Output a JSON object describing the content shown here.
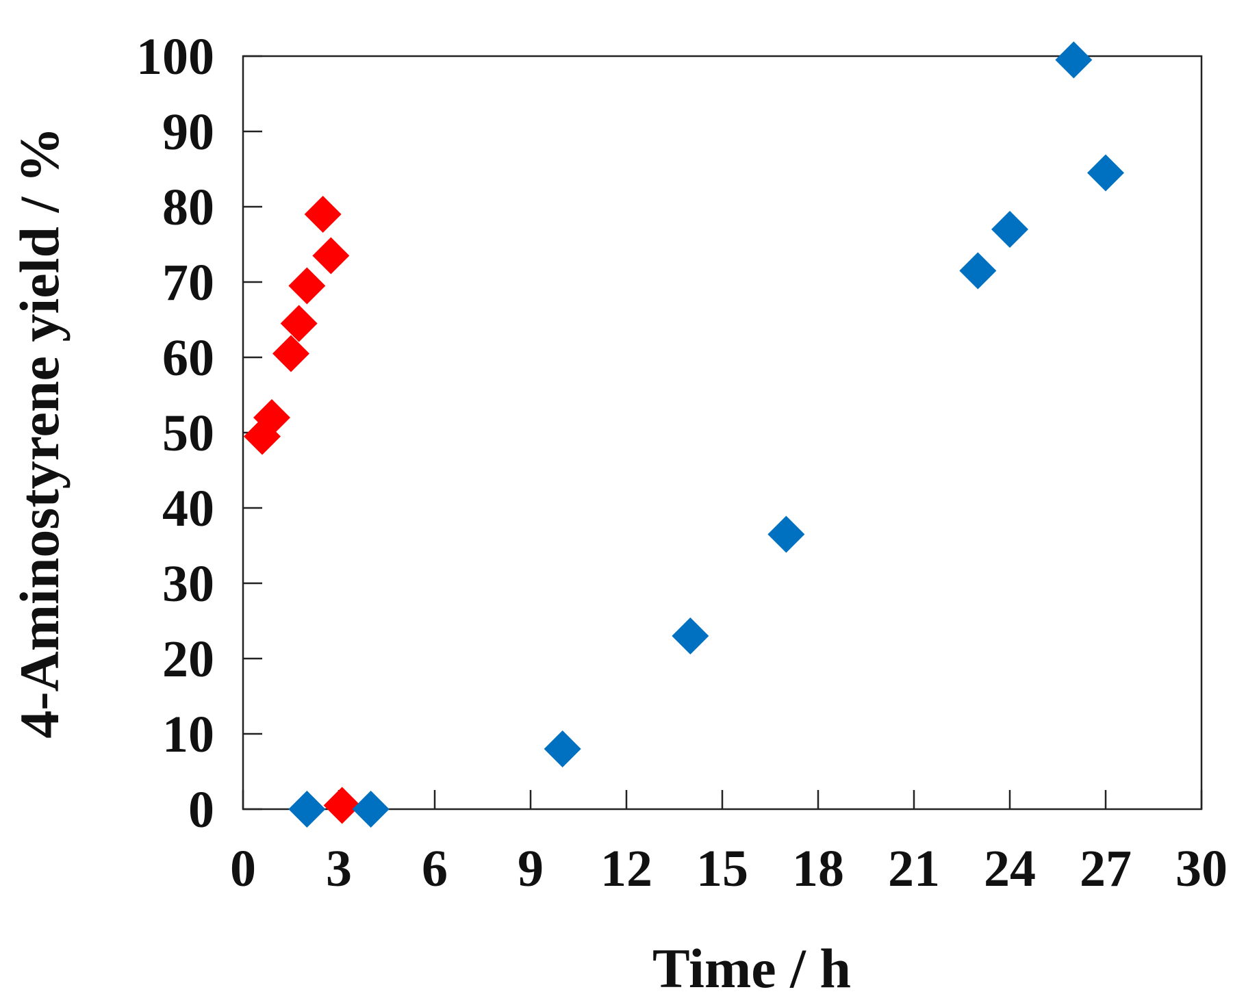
{
  "chart_data": {
    "type": "scatter",
    "title": "",
    "xlabel": "Time / h",
    "ylabel": "4-Aminostyrene yield / %",
    "xlim": [
      0,
      30
    ],
    "ylim": [
      0,
      100
    ],
    "xticks": [
      0,
      3,
      6,
      9,
      12,
      15,
      18,
      21,
      24,
      27,
      30
    ],
    "yticks": [
      0,
      10,
      20,
      30,
      40,
      50,
      60,
      70,
      80,
      90,
      100
    ],
    "grid": false,
    "legend": "none",
    "marker": "diamond",
    "series": [
      {
        "color": "#ff0000",
        "points": [
          {
            "x": 0.6,
            "y": 49.5
          },
          {
            "x": 0.9,
            "y": 52
          },
          {
            "x": 1.5,
            "y": 60.5
          },
          {
            "x": 1.75,
            "y": 64.5
          },
          {
            "x": 2.0,
            "y": 69.5
          },
          {
            "x": 2.5,
            "y": 79
          },
          {
            "x": 2.75,
            "y": 73.5
          },
          {
            "x": 3.1,
            "y": 0.5
          }
        ]
      },
      {
        "color": "#0070c0",
        "points": [
          {
            "x": 2,
            "y": 0
          },
          {
            "x": 4,
            "y": 0
          },
          {
            "x": 10,
            "y": 8
          },
          {
            "x": 14,
            "y": 23
          },
          {
            "x": 17,
            "y": 36.5
          },
          {
            "x": 23,
            "y": 71.5
          },
          {
            "x": 24,
            "y": 77
          },
          {
            "x": 26,
            "y": 99.5
          },
          {
            "x": 27,
            "y": 84.5
          }
        ]
      }
    ]
  }
}
